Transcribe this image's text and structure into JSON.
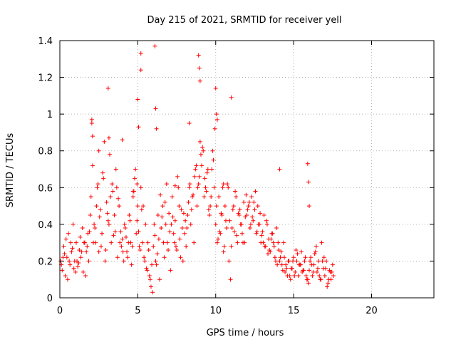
{
  "chart_data": {
    "type": "scatter",
    "title": "Day 215 of 2021, SRMTID for receiver yell",
    "xlabel": "GPS time / hours",
    "ylabel": "SRMTID / TECUs",
    "xlim": [
      0,
      24
    ],
    "ylim": [
      0,
      1.4
    ],
    "grid": true,
    "marker": "+",
    "marker_color": "#ff0000",
    "x_ticks": [
      0,
      5,
      10,
      15,
      20
    ],
    "x_tick_labels": [
      "0",
      "5",
      "10",
      "15",
      "20"
    ],
    "y_ticks": [
      0,
      0.2,
      0.4,
      0.6,
      0.8,
      1.0,
      1.2,
      1.4
    ],
    "y_tick_labels": [
      "0",
      "0.2",
      "0.4",
      "0.6",
      "0.8",
      "1",
      "1.2",
      "1.4"
    ],
    "series": [
      {
        "name": "SRMTID",
        "x": [
          0.05,
          0.15,
          0.25,
          0.35,
          0.45,
          0.55,
          0.65,
          0.75,
          0.85,
          0.95,
          1.05,
          1.15,
          1.25,
          1.35,
          1.45,
          1.55,
          1.65,
          1.75,
          1.85,
          1.95,
          0.1,
          0.3,
          0.5,
          0.7,
          0.9,
          1.1,
          1.3,
          1.5,
          1.7,
          1.9,
          0.2,
          0.4,
          0.6,
          0.8,
          1.0,
          1.2,
          1.4,
          1.6,
          1.8,
          2.0,
          2.1,
          2.2,
          2.3,
          2.4,
          2.5,
          2.6,
          2.7,
          2.8,
          2.9,
          3.0,
          3.1,
          3.2,
          3.3,
          3.4,
          3.5,
          3.6,
          3.7,
          3.8,
          3.9,
          2.05,
          2.25,
          2.45,
          2.65,
          2.85,
          3.05,
          3.25,
          3.45,
          3.65,
          3.85,
          2.15,
          2.35,
          2.55,
          2.75,
          2.95,
          3.15,
          3.35,
          3.55,
          3.75,
          3.95,
          4.0,
          4.1,
          4.2,
          4.3,
          4.4,
          4.5,
          4.6,
          4.7,
          4.8,
          4.9,
          5.0,
          5.1,
          5.2,
          5.3,
          5.4,
          5.5,
          5.6,
          5.7,
          5.8,
          5.9,
          4.05,
          4.25,
          4.45,
          4.65,
          4.85,
          5.05,
          5.25,
          5.45,
          5.65,
          5.85,
          4.15,
          4.35,
          4.55,
          4.75,
          4.95,
          5.15,
          5.35,
          5.55,
          5.75,
          5.95,
          6.0,
          6.1,
          6.2,
          6.3,
          6.4,
          6.5,
          6.6,
          6.7,
          6.8,
          6.9,
          7.0,
          7.1,
          7.2,
          7.3,
          7.4,
          7.5,
          7.6,
          7.7,
          7.8,
          7.9,
          6.05,
          6.25,
          6.45,
          6.65,
          6.85,
          7.05,
          7.25,
          7.45,
          7.65,
          7.85,
          6.15,
          6.35,
          6.55,
          6.75,
          6.95,
          7.15,
          7.35,
          7.55,
          7.75,
          7.95,
          8.0,
          8.1,
          8.2,
          8.3,
          8.4,
          8.5,
          8.6,
          8.7,
          8.8,
          8.9,
          9.0,
          9.1,
          9.2,
          9.3,
          9.4,
          9.5,
          9.6,
          9.7,
          9.8,
          9.9,
          8.05,
          8.25,
          8.45,
          8.65,
          8.85,
          9.05,
          9.25,
          9.45,
          9.65,
          9.85,
          8.15,
          8.35,
          8.55,
          8.75,
          8.95,
          9.15,
          9.35,
          9.55,
          9.75,
          9.95,
          10.0,
          10.1,
          10.2,
          10.3,
          10.4,
          10.5,
          10.6,
          10.7,
          10.8,
          10.9,
          11.0,
          11.1,
          11.2,
          11.3,
          11.4,
          11.5,
          11.6,
          11.7,
          11.8,
          11.9,
          10.05,
          10.25,
          10.45,
          10.65,
          10.85,
          11.05,
          11.25,
          11.45,
          11.65,
          11.85,
          10.15,
          10.35,
          10.55,
          10.75,
          10.95,
          11.15,
          11.35,
          11.55,
          11.75,
          11.95,
          12.0,
          12.1,
          12.2,
          12.3,
          12.4,
          12.5,
          12.6,
          12.7,
          12.8,
          12.9,
          13.0,
          13.1,
          13.2,
          13.3,
          13.4,
          13.5,
          13.6,
          13.7,
          13.8,
          13.9,
          12.05,
          12.25,
          12.45,
          12.65,
          12.85,
          13.05,
          13.25,
          13.45,
          13.65,
          13.85,
          12.15,
          12.35,
          12.55,
          12.75,
          12.95,
          13.15,
          13.35,
          13.55,
          13.75,
          13.95,
          14.0,
          14.1,
          14.2,
          14.3,
          14.4,
          14.5,
          14.6,
          14.7,
          14.8,
          14.9,
          15.0,
          15.1,
          15.2,
          15.3,
          15.4,
          15.5,
          15.6,
          15.7,
          15.8,
          15.9,
          14.05,
          14.25,
          14.45,
          14.65,
          14.85,
          15.05,
          15.25,
          15.45,
          15.65,
          15.85,
          14.15,
          14.35,
          14.55,
          14.75,
          14.95,
          15.15,
          15.35,
          15.55,
          15.75,
          15.95,
          16.0,
          16.1,
          16.2,
          16.3,
          16.4,
          16.5,
          16.6,
          16.7,
          16.8,
          16.9,
          17.0,
          17.1,
          17.2,
          17.3,
          17.4,
          17.5,
          16.05,
          16.25,
          16.45,
          16.65,
          16.85,
          17.05,
          17.25,
          17.45,
          16.15,
          16.35,
          16.55,
          16.75,
          16.95,
          17.15,
          17.35,
          17.55,
          3.1,
          3.15,
          5.0,
          5.2,
          5.05,
          4.95,
          6.1,
          6.15,
          8.9,
          8.95,
          9.0,
          10.0,
          10.05,
          10.1,
          11.0,
          2.05,
          2.1,
          4.0,
          7.4,
          8.3,
          14.1,
          15.9,
          15.95,
          16.0,
          6.2,
          5.2,
          2.5,
          10.5,
          4.7
        ],
        "y": [
          0.2,
          0.15,
          0.28,
          0.12,
          0.22,
          0.35,
          0.18,
          0.25,
          0.4,
          0.2,
          0.3,
          0.17,
          0.26,
          0.22,
          0.38,
          0.3,
          0.12,
          0.28,
          0.2,
          0.45,
          0.18,
          0.24,
          0.1,
          0.3,
          0.16,
          0.2,
          0.33,
          0.14,
          0.25,
          0.36,
          0.22,
          0.32,
          0.2,
          0.27,
          0.14,
          0.19,
          0.25,
          0.3,
          0.35,
          0.55,
          0.72,
          0.4,
          0.3,
          0.6,
          0.25,
          0.48,
          0.35,
          0.65,
          0.2,
          0.52,
          0.42,
          0.78,
          0.3,
          0.58,
          0.45,
          0.7,
          0.22,
          0.5,
          0.36,
          0.95,
          0.38,
          0.62,
          0.28,
          0.85,
          0.46,
          0.55,
          0.34,
          0.6,
          0.3,
          0.3,
          0.5,
          0.44,
          0.68,
          0.26,
          0.4,
          0.62,
          0.36,
          0.54,
          0.28,
          0.32,
          0.2,
          0.38,
          0.25,
          0.3,
          0.42,
          0.18,
          0.55,
          0.65,
          0.35,
          0.5,
          0.28,
          0.6,
          0.3,
          0.22,
          0.4,
          0.15,
          0.26,
          0.1,
          0.18,
          0.25,
          0.33,
          0.45,
          0.28,
          0.7,
          0.36,
          0.48,
          0.2,
          0.3,
          0.06,
          0.4,
          0.22,
          0.3,
          0.58,
          0.42,
          0.26,
          0.5,
          0.16,
          0.12,
          0.03,
          0.28,
          0.34,
          0.18,
          0.45,
          0.1,
          0.38,
          0.5,
          0.22,
          0.4,
          0.3,
          0.46,
          0.15,
          0.55,
          0.35,
          0.42,
          0.26,
          0.6,
          0.32,
          0.48,
          0.2,
          0.4,
          0.24,
          0.56,
          0.3,
          0.62,
          0.36,
          0.44,
          0.28,
          0.5,
          0.38,
          0.2,
          0.32,
          0.44,
          0.52,
          0.26,
          0.4,
          0.3,
          0.66,
          0.22,
          0.46,
          0.35,
          0.28,
          0.45,
          0.6,
          0.4,
          0.55,
          0.3,
          0.7,
          0.5,
          0.62,
          0.85,
          0.72,
          0.8,
          0.65,
          0.58,
          0.7,
          0.45,
          0.55,
          0.8,
          0.6,
          0.42,
          0.52,
          0.48,
          0.66,
          0.6,
          0.78,
          0.55,
          0.68,
          0.5,
          0.75,
          0.38,
          0.62,
          0.56,
          0.72,
          0.66,
          0.82,
          0.6,
          0.48,
          0.7,
          0.92,
          0.4,
          0.3,
          0.55,
          0.35,
          0.45,
          0.25,
          0.5,
          0.38,
          0.6,
          0.42,
          0.28,
          0.48,
          0.36,
          0.55,
          0.3,
          0.45,
          0.4,
          0.35,
          0.52,
          0.44,
          0.5,
          0.36,
          0.6,
          0.42,
          0.2,
          0.38,
          0.58,
          0.46,
          0.4,
          0.3,
          0.32,
          0.46,
          0.28,
          0.62,
          0.1,
          0.5,
          0.34,
          0.48,
          0.3,
          0.56,
          0.45,
          0.5,
          0.38,
          0.55,
          0.42,
          0.48,
          0.35,
          0.5,
          0.4,
          0.3,
          0.36,
          0.45,
          0.28,
          0.4,
          0.32,
          0.25,
          0.35,
          0.3,
          0.22,
          0.38,
          0.48,
          0.4,
          0.52,
          0.36,
          0.46,
          0.3,
          0.42,
          0.26,
          0.35,
          0.2,
          0.52,
          0.44,
          0.58,
          0.4,
          0.34,
          0.28,
          0.24,
          0.32,
          0.28,
          0.18,
          0.3,
          0.2,
          0.25,
          0.15,
          0.22,
          0.18,
          0.12,
          0.2,
          0.1,
          0.16,
          0.22,
          0.14,
          0.2,
          0.12,
          0.18,
          0.25,
          0.15,
          0.2,
          0.12,
          0.1,
          0.26,
          0.18,
          0.14,
          0.2,
          0.16,
          0.12,
          0.24,
          0.18,
          0.15,
          0.1,
          0.22,
          0.3,
          0.16,
          0.12,
          0.2,
          0.26,
          0.18,
          0.14,
          0.22,
          0.08,
          0.15,
          0.22,
          0.12,
          0.18,
          0.25,
          0.14,
          0.2,
          0.1,
          0.3,
          0.16,
          0.12,
          0.2,
          0.08,
          0.15,
          0.1,
          0.18,
          0.2,
          0.14,
          0.28,
          0.12,
          0.2,
          0.16,
          0.1,
          0.14,
          0.18,
          0.24,
          0.16,
          0.1,
          0.22,
          0.06,
          0.14,
          0.12,
          1.14,
          0.87,
          1.08,
          1.33,
          0.93,
          0.62,
          1.37,
          1.03,
          1.32,
          1.25,
          1.18,
          1.14,
          1.0,
          0.97,
          1.09,
          0.97,
          0.88,
          0.86,
          0.61,
          0.95,
          0.7,
          0.73,
          0.63,
          0.5,
          0.92,
          1.24,
          0.8,
          0.62,
          0.58
        ]
      }
    ]
  }
}
